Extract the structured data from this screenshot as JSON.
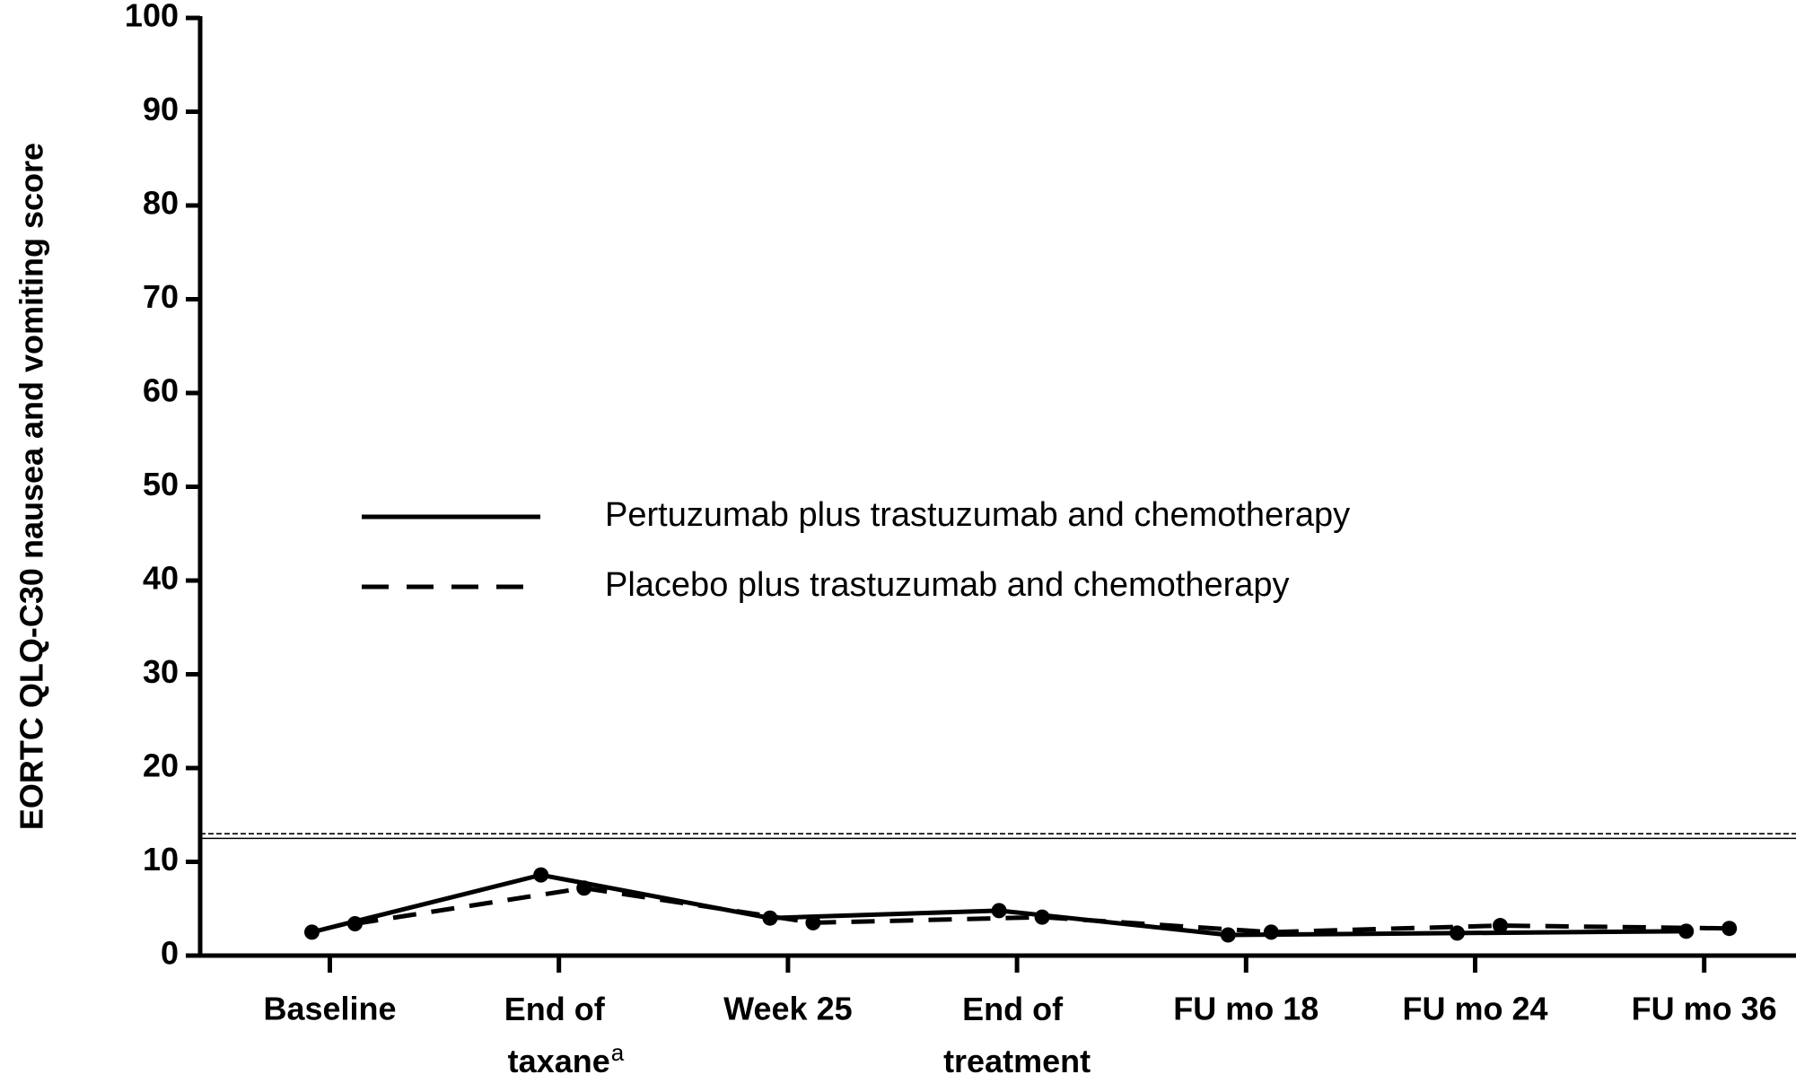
{
  "chart_data": {
    "type": "line",
    "ylabel": "EORTC QLQ-C30 nausea and vomiting score",
    "categories": [
      "Baseline",
      "End of taxane",
      "Week 25",
      "End of treatment",
      "FU mo 18",
      "FU mo 24",
      "FU mo 36"
    ],
    "category_notes": [
      null,
      "a",
      null,
      null,
      null,
      null,
      null
    ],
    "series": [
      {
        "name": "Pertuzumab plus trastuzumab and chemotherapy",
        "color": "#000000",
        "style": "solid",
        "values": [
          2.5,
          8.6,
          4.0,
          4.8,
          2.2,
          2.4,
          2.6
        ]
      },
      {
        "name": "Placebo plus trastuzumab and chemotherapy",
        "color": "#000000",
        "style": "dashed",
        "values": [
          3.4,
          7.2,
          3.5,
          4.1,
          2.5,
          3.2,
          2.9
        ]
      }
    ],
    "reference_lines": [
      {
        "value": 12.5,
        "style": "solid"
      },
      {
        "value": 13.0,
        "style": "dashed"
      }
    ],
    "ylim": [
      0,
      100
    ],
    "yticks": [
      0,
      10,
      20,
      30,
      40,
      50,
      60,
      70,
      80,
      90,
      100
    ],
    "grid": false,
    "legend": "center-left"
  }
}
